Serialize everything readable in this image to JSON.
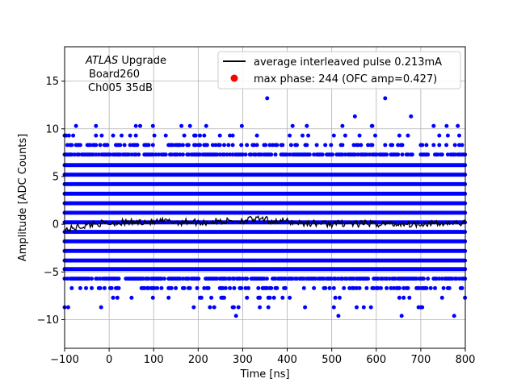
{
  "chart_data": {
    "type": "scatter",
    "xlabel": "Time [ns]",
    "ylabel": "Amplitude [ADC Counts]",
    "xlim": [
      -100,
      800
    ],
    "ylim": [
      -13,
      18.6
    ],
    "xticks": [
      -100,
      0,
      100,
      200,
      300,
      400,
      500,
      600,
      700,
      800
    ],
    "yticks": [
      -10,
      -5,
      0,
      5,
      10,
      15
    ],
    "grid": true,
    "legend_position": "top-right",
    "annotation": {
      "line1_italic": "ATLAS",
      "line1_rest": " Upgrade",
      "line2": "Board260",
      "line3": "Ch005 35dB"
    },
    "colors": {
      "samples": "#0000ff",
      "average": "#000000",
      "max_phase": "#ff0000"
    },
    "series": [
      {
        "name": "average interleaved pulse 0.213mA",
        "kind": "line",
        "description_points_x": [
          -100,
          -80,
          -60,
          -40,
          -20,
          0,
          20,
          40,
          60,
          80,
          100,
          120,
          140,
          160,
          180,
          200,
          220,
          240,
          260,
          280,
          300,
          320,
          340,
          360,
          380,
          400,
          420,
          440,
          460,
          480,
          500,
          520,
          540,
          560,
          580,
          600,
          620,
          640,
          660,
          680,
          700,
          720,
          740,
          760,
          780,
          800
        ],
        "y": [
          -0.6,
          -0.4,
          -0.2,
          0.0,
          0.1,
          0.1,
          0.2,
          0.2,
          0.2,
          0.3,
          0.2,
          0.3,
          0.3,
          0.2,
          0.3,
          0.2,
          0.2,
          0.3,
          0.3,
          0.4,
          0.4,
          0.5,
          0.5,
          0.4,
          0.3,
          0.3,
          0.2,
          0.1,
          0.1,
          0.1,
          0.0,
          0.1,
          0.1,
          0.0,
          0.1,
          0.0,
          0.1,
          0.0,
          0.1,
          0.0,
          0.1,
          0.1,
          0.0,
          0.1,
          0.1,
          0.1
        ]
      },
      {
        "name": "max phase: 244 (OFC amp=0.427)",
        "kind": "point"
      }
    ],
    "sample_levels": [
      -8.7,
      -7.7,
      -6.7,
      -5.7,
      -4.7,
      -3.8,
      -2.8,
      -1.8,
      -0.8,
      0.2,
      1.2,
      2.2,
      3.2,
      4.2,
      5.2,
      6.2,
      7.3,
      8.3,
      9.3,
      10.3
    ],
    "sample_level_coverage": [
      0.05,
      0.1,
      0.35,
      0.75,
      1.0,
      1.0,
      1.0,
      1.0,
      1.0,
      1.0,
      1.0,
      1.0,
      1.0,
      1.0,
      1.0,
      1.0,
      0.75,
      0.35,
      0.12,
      0.04
    ],
    "sample_outliers": [
      {
        "x": 355,
        "y": 13.2
      },
      {
        "x": 620,
        "y": 13.2
      },
      {
        "x": 552,
        "y": 11.3
      },
      {
        "x": 678,
        "y": 11.3
      },
      {
        "x": 298,
        "y": 10.3
      },
      {
        "x": 60,
        "y": 10.3
      },
      {
        "x": 218,
        "y": 10.3
      },
      {
        "x": 590,
        "y": 10.3
      },
      {
        "x": 758,
        "y": 10.3
      },
      {
        "x": 285,
        "y": -9.6
      },
      {
        "x": 515,
        "y": -9.6
      },
      {
        "x": 657,
        "y": -9.6
      },
      {
        "x": 775,
        "y": -9.6
      },
      {
        "x": -92,
        "y": -8.7
      },
      {
        "x": -18,
        "y": -8.7
      },
      {
        "x": 190,
        "y": -8.7
      },
      {
        "x": 440,
        "y": -8.7
      },
      {
        "x": 280,
        "y": -8.7
      },
      {
        "x": 695,
        "y": -8.7
      }
    ]
  }
}
